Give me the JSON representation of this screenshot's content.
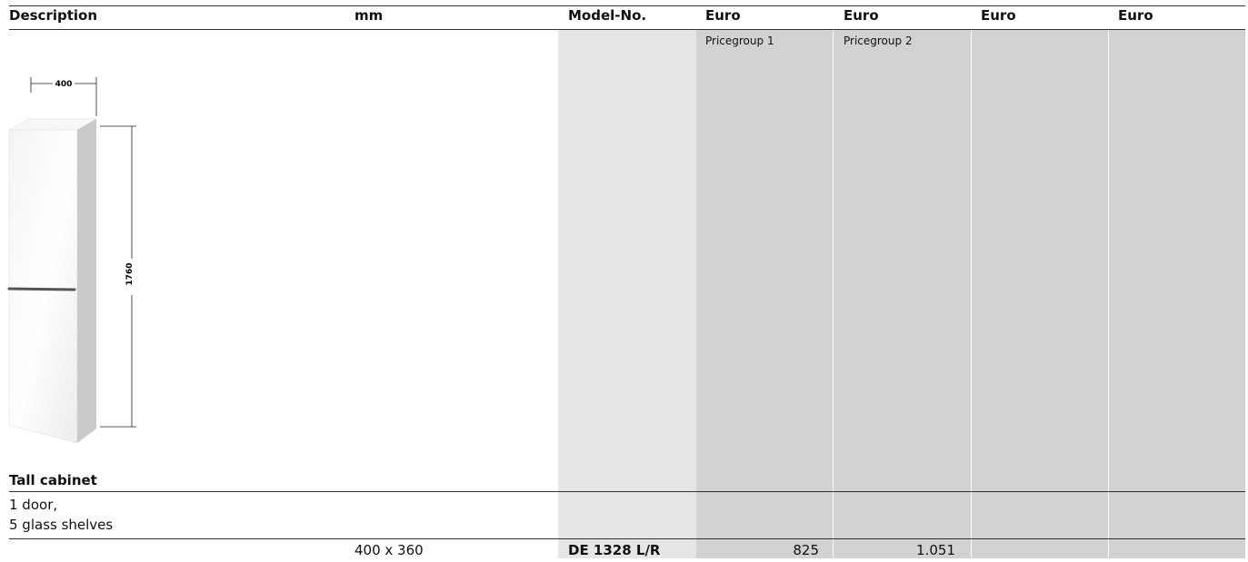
{
  "header": {
    "columns": [
      "Description",
      "mm",
      "Model-No.",
      "Euro",
      "Euro",
      "Euro",
      "Euro"
    ]
  },
  "subheader": {
    "pricegroups": [
      "Pricegroup 1",
      "Pricegroup 2"
    ]
  },
  "drawing": {
    "width_label": "400",
    "height_label": "1760"
  },
  "product": {
    "name": "Tall cabinet",
    "description": [
      "1 door,",
      "5 glass shelves"
    ],
    "row": {
      "dimensions": "400 x 360",
      "model": "DE 1328 L/R",
      "prices": [
        "825",
        "1.051"
      ]
    }
  }
}
